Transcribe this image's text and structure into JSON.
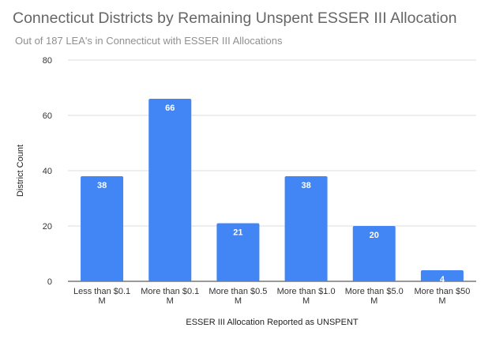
{
  "chart_data": {
    "type": "bar",
    "title": "Connecticut Districts by Remaining Unspent ESSER III Allocation",
    "subtitle": "Out of 187 LEA's in Connecticut with ESSER III Allocations",
    "xlabel": "ESSER III Allocation Reported as UNSPENT",
    "ylabel": "District Count",
    "categories": [
      [
        "Less than $0.1",
        "M"
      ],
      [
        "More than $0.1",
        "M"
      ],
      [
        "More than $0.5",
        "M"
      ],
      [
        "More than $1.0",
        "M"
      ],
      [
        "More than $5.0",
        "M"
      ],
      [
        "More than $50",
        "M"
      ]
    ],
    "values": [
      38,
      66,
      21,
      38,
      20,
      4
    ],
    "ylim": [
      0,
      80
    ],
    "yticks": [
      0,
      20,
      40,
      60,
      80
    ],
    "grid": true,
    "legend": "none",
    "bar_color": "#4285f4",
    "grid_color": "#dddddd"
  }
}
